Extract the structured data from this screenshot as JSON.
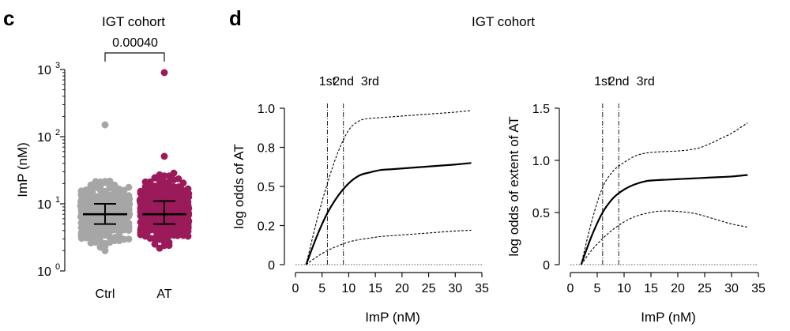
{
  "panels": {
    "c": {
      "letter": "c",
      "title": "IGT cohort",
      "pvalue": "0.00040",
      "ylabel": "ImP (nM)",
      "ytick_base": "10",
      "yticks": [
        "0",
        "1",
        "2",
        "3"
      ]
    },
    "d": {
      "letter": "d",
      "title": "IGT cohort"
    }
  },
  "chart_data": [
    {
      "type": "scatter",
      "panel": "c",
      "yscale": "log",
      "ylim": [
        1,
        1000
      ],
      "categories": [
        "Ctrl",
        "AT"
      ],
      "colors": {
        "Ctrl": "#a6a6a6",
        "AT": "#9a1a5a"
      },
      "series": [
        {
          "name": "Ctrl",
          "median": 7,
          "q1": 5,
          "q3": 10,
          "max": 150,
          "min": 2
        },
        {
          "name": "AT",
          "median": 7,
          "q1": 5,
          "q3": 11,
          "max": 900,
          "min": 2
        }
      ]
    },
    {
      "type": "line",
      "panel": "d-left",
      "xlabel": "ImP (nM)",
      "ylabel": "log odds of AT",
      "xlim": [
        0,
        35
      ],
      "ylim": [
        0,
        1.0
      ],
      "xticks": [
        "0",
        "5",
        "10",
        "15",
        "20",
        "25",
        "30",
        "35"
      ],
      "yticks": [
        "0",
        "0.2",
        "0.5",
        "0.8",
        "1.0"
      ],
      "ytick_values": [
        0,
        0.25,
        0.5,
        0.75,
        1.0
      ],
      "quartiles": [
        {
          "label": "1st",
          "x": 6
        },
        {
          "label": "2nd",
          "x": 9
        },
        {
          "label": "3rd",
          "x": 14
        }
      ],
      "x": [
        2,
        4,
        6,
        8,
        10,
        12,
        14,
        16,
        18,
        20,
        22,
        24,
        26,
        28,
        30,
        33
      ],
      "series": [
        {
          "style": "solid",
          "values": [
            0.0,
            0.18,
            0.33,
            0.44,
            0.52,
            0.57,
            0.59,
            0.605,
            0.61,
            0.615,
            0.62,
            0.625,
            0.63,
            0.635,
            0.64,
            0.65
          ]
        },
        {
          "style": "dashed-upper",
          "values": [
            0.0,
            0.28,
            0.52,
            0.72,
            0.86,
            0.92,
            0.935,
            0.94,
            0.945,
            0.95,
            0.955,
            0.96,
            0.965,
            0.97,
            0.975,
            0.985
          ]
        },
        {
          "style": "dashed-lower",
          "values": [
            0.0,
            0.05,
            0.09,
            0.12,
            0.145,
            0.16,
            0.17,
            0.18,
            0.185,
            0.19,
            0.195,
            0.2,
            0.205,
            0.21,
            0.215,
            0.22
          ]
        }
      ]
    },
    {
      "type": "line",
      "panel": "d-right",
      "xlabel": "ImP (nM)",
      "ylabel": "log odds of extent of AT",
      "xlim": [
        0,
        35
      ],
      "ylim": [
        0,
        1.5
      ],
      "xticks": [
        "0",
        "5",
        "10",
        "15",
        "20",
        "25",
        "30",
        "35"
      ],
      "yticks": [
        "0",
        "0.5",
        "1.0",
        "1.5"
      ],
      "ytick_values": [
        0,
        0.5,
        1.0,
        1.5
      ],
      "quartiles": [
        {
          "label": "1st",
          "x": 6
        },
        {
          "label": "2nd",
          "x": 9
        },
        {
          "label": "3rd",
          "x": 14
        }
      ],
      "x": [
        2,
        4,
        6,
        8,
        10,
        12,
        14,
        16,
        18,
        20,
        22,
        24,
        26,
        28,
        30,
        33
      ],
      "series": [
        {
          "style": "solid",
          "values": [
            0.0,
            0.28,
            0.5,
            0.64,
            0.72,
            0.77,
            0.8,
            0.81,
            0.815,
            0.82,
            0.825,
            0.83,
            0.835,
            0.84,
            0.845,
            0.86
          ]
        },
        {
          "style": "dashed-upper",
          "values": [
            0.0,
            0.42,
            0.74,
            0.9,
            0.98,
            1.04,
            1.07,
            1.08,
            1.085,
            1.09,
            1.1,
            1.12,
            1.16,
            1.21,
            1.26,
            1.36
          ]
        },
        {
          "style": "dashed-lower",
          "values": [
            0.0,
            0.14,
            0.25,
            0.34,
            0.41,
            0.46,
            0.49,
            0.51,
            0.515,
            0.51,
            0.5,
            0.48,
            0.45,
            0.42,
            0.39,
            0.36
          ]
        }
      ]
    }
  ]
}
